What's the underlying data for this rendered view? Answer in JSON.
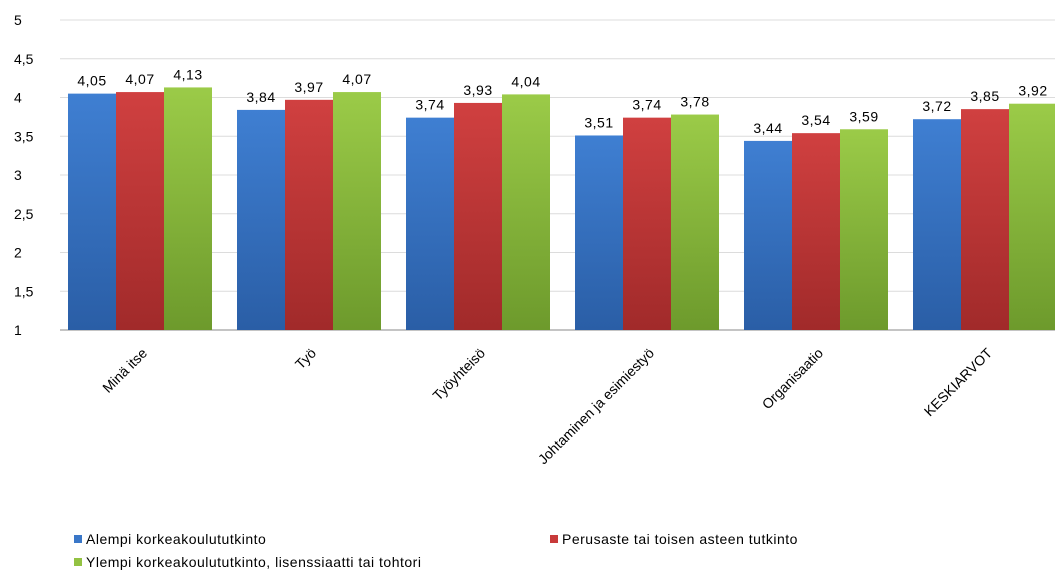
{
  "chart_data": {
    "type": "bar",
    "categories": [
      "Minä itse",
      "Työ",
      "Työyhteisö",
      "Johtaminen ja esimiestyö",
      "Organisaatio",
      "KESKIARVOT"
    ],
    "series": [
      {
        "name": "Alempi korkeakoulututkinto",
        "values": [
          4.05,
          3.84,
          3.74,
          3.51,
          3.44,
          3.72
        ],
        "labels": [
          "4,05",
          "3,84",
          "3,74",
          "3,51",
          "3,44",
          "3,72"
        ],
        "color": "#3a77c8"
      },
      {
        "name": "Perusaste tai toisen asteen tutkinto",
        "values": [
          4.07,
          3.97,
          3.93,
          3.74,
          3.54,
          3.85
        ],
        "labels": [
          "4,07",
          "3,97",
          "3,93",
          "3,74",
          "3,54",
          "3,85"
        ],
        "color": "#c83a3a"
      },
      {
        "name": "Ylempi korkeakoulututkinto, lisenssiaatti tai tohtori",
        "values": [
          4.13,
          4.07,
          4.04,
          3.78,
          3.59,
          3.92
        ],
        "labels": [
          "4,13",
          "4,07",
          "4,04",
          "3,78",
          "3,59",
          "3,92"
        ],
        "color": "#93c242"
      }
    ],
    "ylim": [
      1,
      5
    ],
    "yticks": [
      1,
      1.5,
      2,
      2.5,
      3,
      3.5,
      4,
      4.5,
      5
    ],
    "ytick_labels": [
      "1",
      "1,5",
      "2",
      "2,5",
      "3",
      "3,5",
      "4",
      "4,5",
      "5"
    ],
    "grid": true,
    "legend_position": "bottom"
  }
}
